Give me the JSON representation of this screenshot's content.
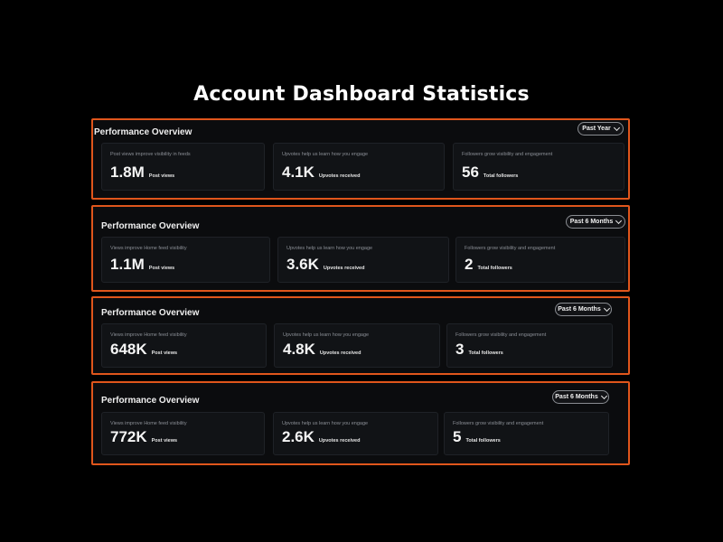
{
  "title": "Account Dashboard Statistics",
  "panels": [
    {
      "heading": "Performance Overview",
      "range": "Past Year",
      "cards": [
        {
          "desc": "Post views improve visibility in feeds",
          "value": "1.8M",
          "label": "Post views"
        },
        {
          "desc": "Upvotes help us learn how you engage",
          "value": "4.1K",
          "label": "Upvotes received"
        },
        {
          "desc": "Followers grow visibility and engagement",
          "value": "56",
          "label": "Total followers"
        }
      ]
    },
    {
      "heading": "Performance Overview",
      "range": "Past 6 Months",
      "cards": [
        {
          "desc": "Views improve Home feed visibility",
          "value": "1.1M",
          "label": "Post views"
        },
        {
          "desc": "Upvotes help us learn how you engage",
          "value": "3.6K",
          "label": "Upvotes received"
        },
        {
          "desc": "Followers grow visibility and engagement",
          "value": "2",
          "label": "Total followers"
        }
      ]
    },
    {
      "heading": "Performance Overview",
      "range": "Past 6 Months",
      "cards": [
        {
          "desc": "Views improve Home feed visibility",
          "value": "648K",
          "label": "Post views"
        },
        {
          "desc": "Upvotes help us learn how you engage",
          "value": "4.8K",
          "label": "Upvotes received"
        },
        {
          "desc": "Followers grow visibility and engagement",
          "value": "3",
          "label": "Total followers"
        }
      ]
    },
    {
      "heading": "Performance Overview",
      "range": "Past 6 Months",
      "cards": [
        {
          "desc": "Views improve Home feed visibility",
          "value": "772K",
          "label": "Post views"
        },
        {
          "desc": "Upvotes help us learn how you engage",
          "value": "2.6K",
          "label": "Upvotes received"
        },
        {
          "desc": "Followers grow visibility and engagement",
          "value": "5",
          "label": "Total followers"
        }
      ]
    }
  ],
  "colors": {
    "background": "#000000",
    "panel_border": "#e0561c",
    "card_background": "#111316"
  }
}
